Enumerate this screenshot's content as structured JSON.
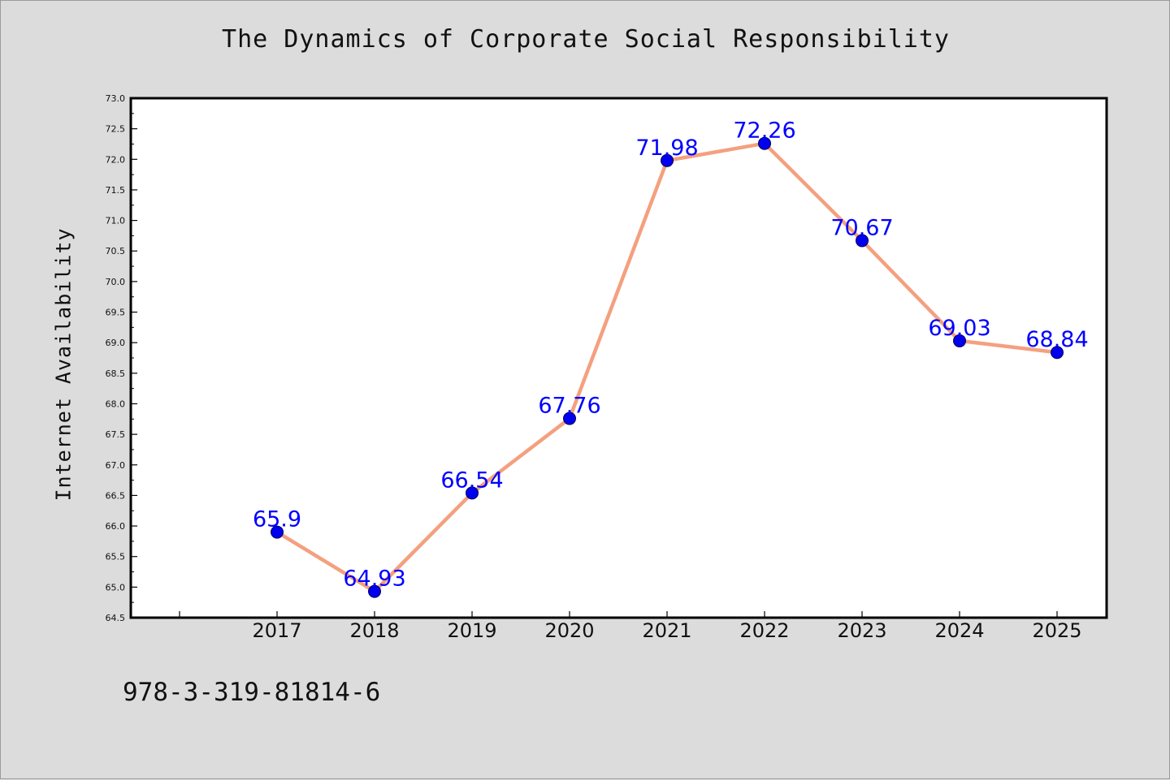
{
  "chart_data": {
    "type": "line",
    "title": "The Dynamics of Corporate Social Responsibility",
    "xlabel": "",
    "ylabel": "Internet Availability",
    "categories": [
      "2017",
      "2018",
      "2019",
      "2020",
      "2021",
      "2022",
      "2023",
      "2024",
      "2025"
    ],
    "series": [
      {
        "values": [
          65.9,
          64.93,
          66.54,
          67.76,
          71.98,
          72.26,
          70.67,
          69.03,
          68.84
        ],
        "labels": [
          "65.9",
          "64.93",
          "66.54",
          "67.76",
          "71.98",
          "72.26",
          "70.67",
          "69.03",
          "68.84"
        ]
      }
    ],
    "ylim": [
      64.5,
      73.0
    ],
    "yticks": [
      "64.5",
      "65.0",
      "65.5",
      "66.0",
      "66.5",
      "67.0",
      "67.5",
      "68.0",
      "68.5",
      "69.0",
      "69.5",
      "70.0",
      "70.5",
      "71.0",
      "71.5",
      "72.0",
      "72.5",
      "73.0"
    ],
    "grid": false,
    "legend": "none"
  },
  "footer": {
    "code": "978-3-319-81814-6"
  },
  "colors": {
    "line": "#f4a07f",
    "marker": "#0000ee",
    "label": "#0000ff",
    "axes": "#000000",
    "background": "#dcdcdc",
    "plot_background": "#ffffff"
  }
}
